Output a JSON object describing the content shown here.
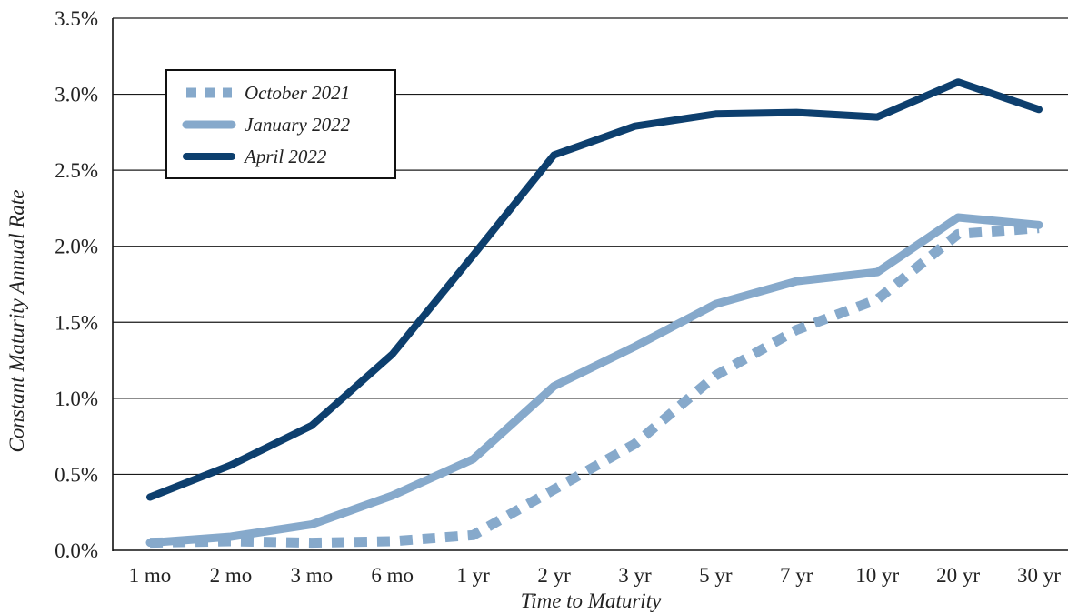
{
  "chart_data": {
    "type": "line",
    "title": "",
    "xlabel": "Time to Maturity",
    "ylabel": "Constant Maturity Annual Rate",
    "categories": [
      "1 mo",
      "2 mo",
      "3 mo",
      "6 mo",
      "1 yr",
      "2 yr",
      "3 yr",
      "5 yr",
      "7 yr",
      "10 yr",
      "20 yr",
      "30 yr"
    ],
    "ylim": [
      0,
      3.5
    ],
    "yticks": [
      0,
      0.5,
      1.0,
      1.5,
      2.0,
      2.5,
      3.0,
      3.5
    ],
    "ytick_labels": [
      "0.0%",
      "0.5%",
      "1.0%",
      "1.5%",
      "2.0%",
      "2.5%",
      "3.0%",
      "3.5%"
    ],
    "grid": "horizontal",
    "legend_position": "top-left",
    "series": [
      {
        "name": "October 2021",
        "style": "dotted",
        "color": "#86a9cb",
        "values": [
          0.05,
          0.06,
          0.05,
          0.06,
          0.1,
          0.4,
          0.7,
          1.15,
          1.45,
          1.65,
          2.08,
          2.12
        ]
      },
      {
        "name": "January 2022",
        "style": "solid",
        "color": "#86a9cb",
        "values": [
          0.05,
          0.09,
          0.17,
          0.36,
          0.6,
          1.08,
          1.34,
          1.62,
          1.77,
          1.83,
          2.19,
          2.14
        ]
      },
      {
        "name": "April 2022",
        "style": "solid",
        "color": "#0d3f6e",
        "values": [
          0.35,
          0.56,
          0.82,
          1.29,
          1.94,
          2.6,
          2.79,
          2.87,
          2.88,
          2.85,
          3.08,
          2.9
        ]
      }
    ]
  }
}
